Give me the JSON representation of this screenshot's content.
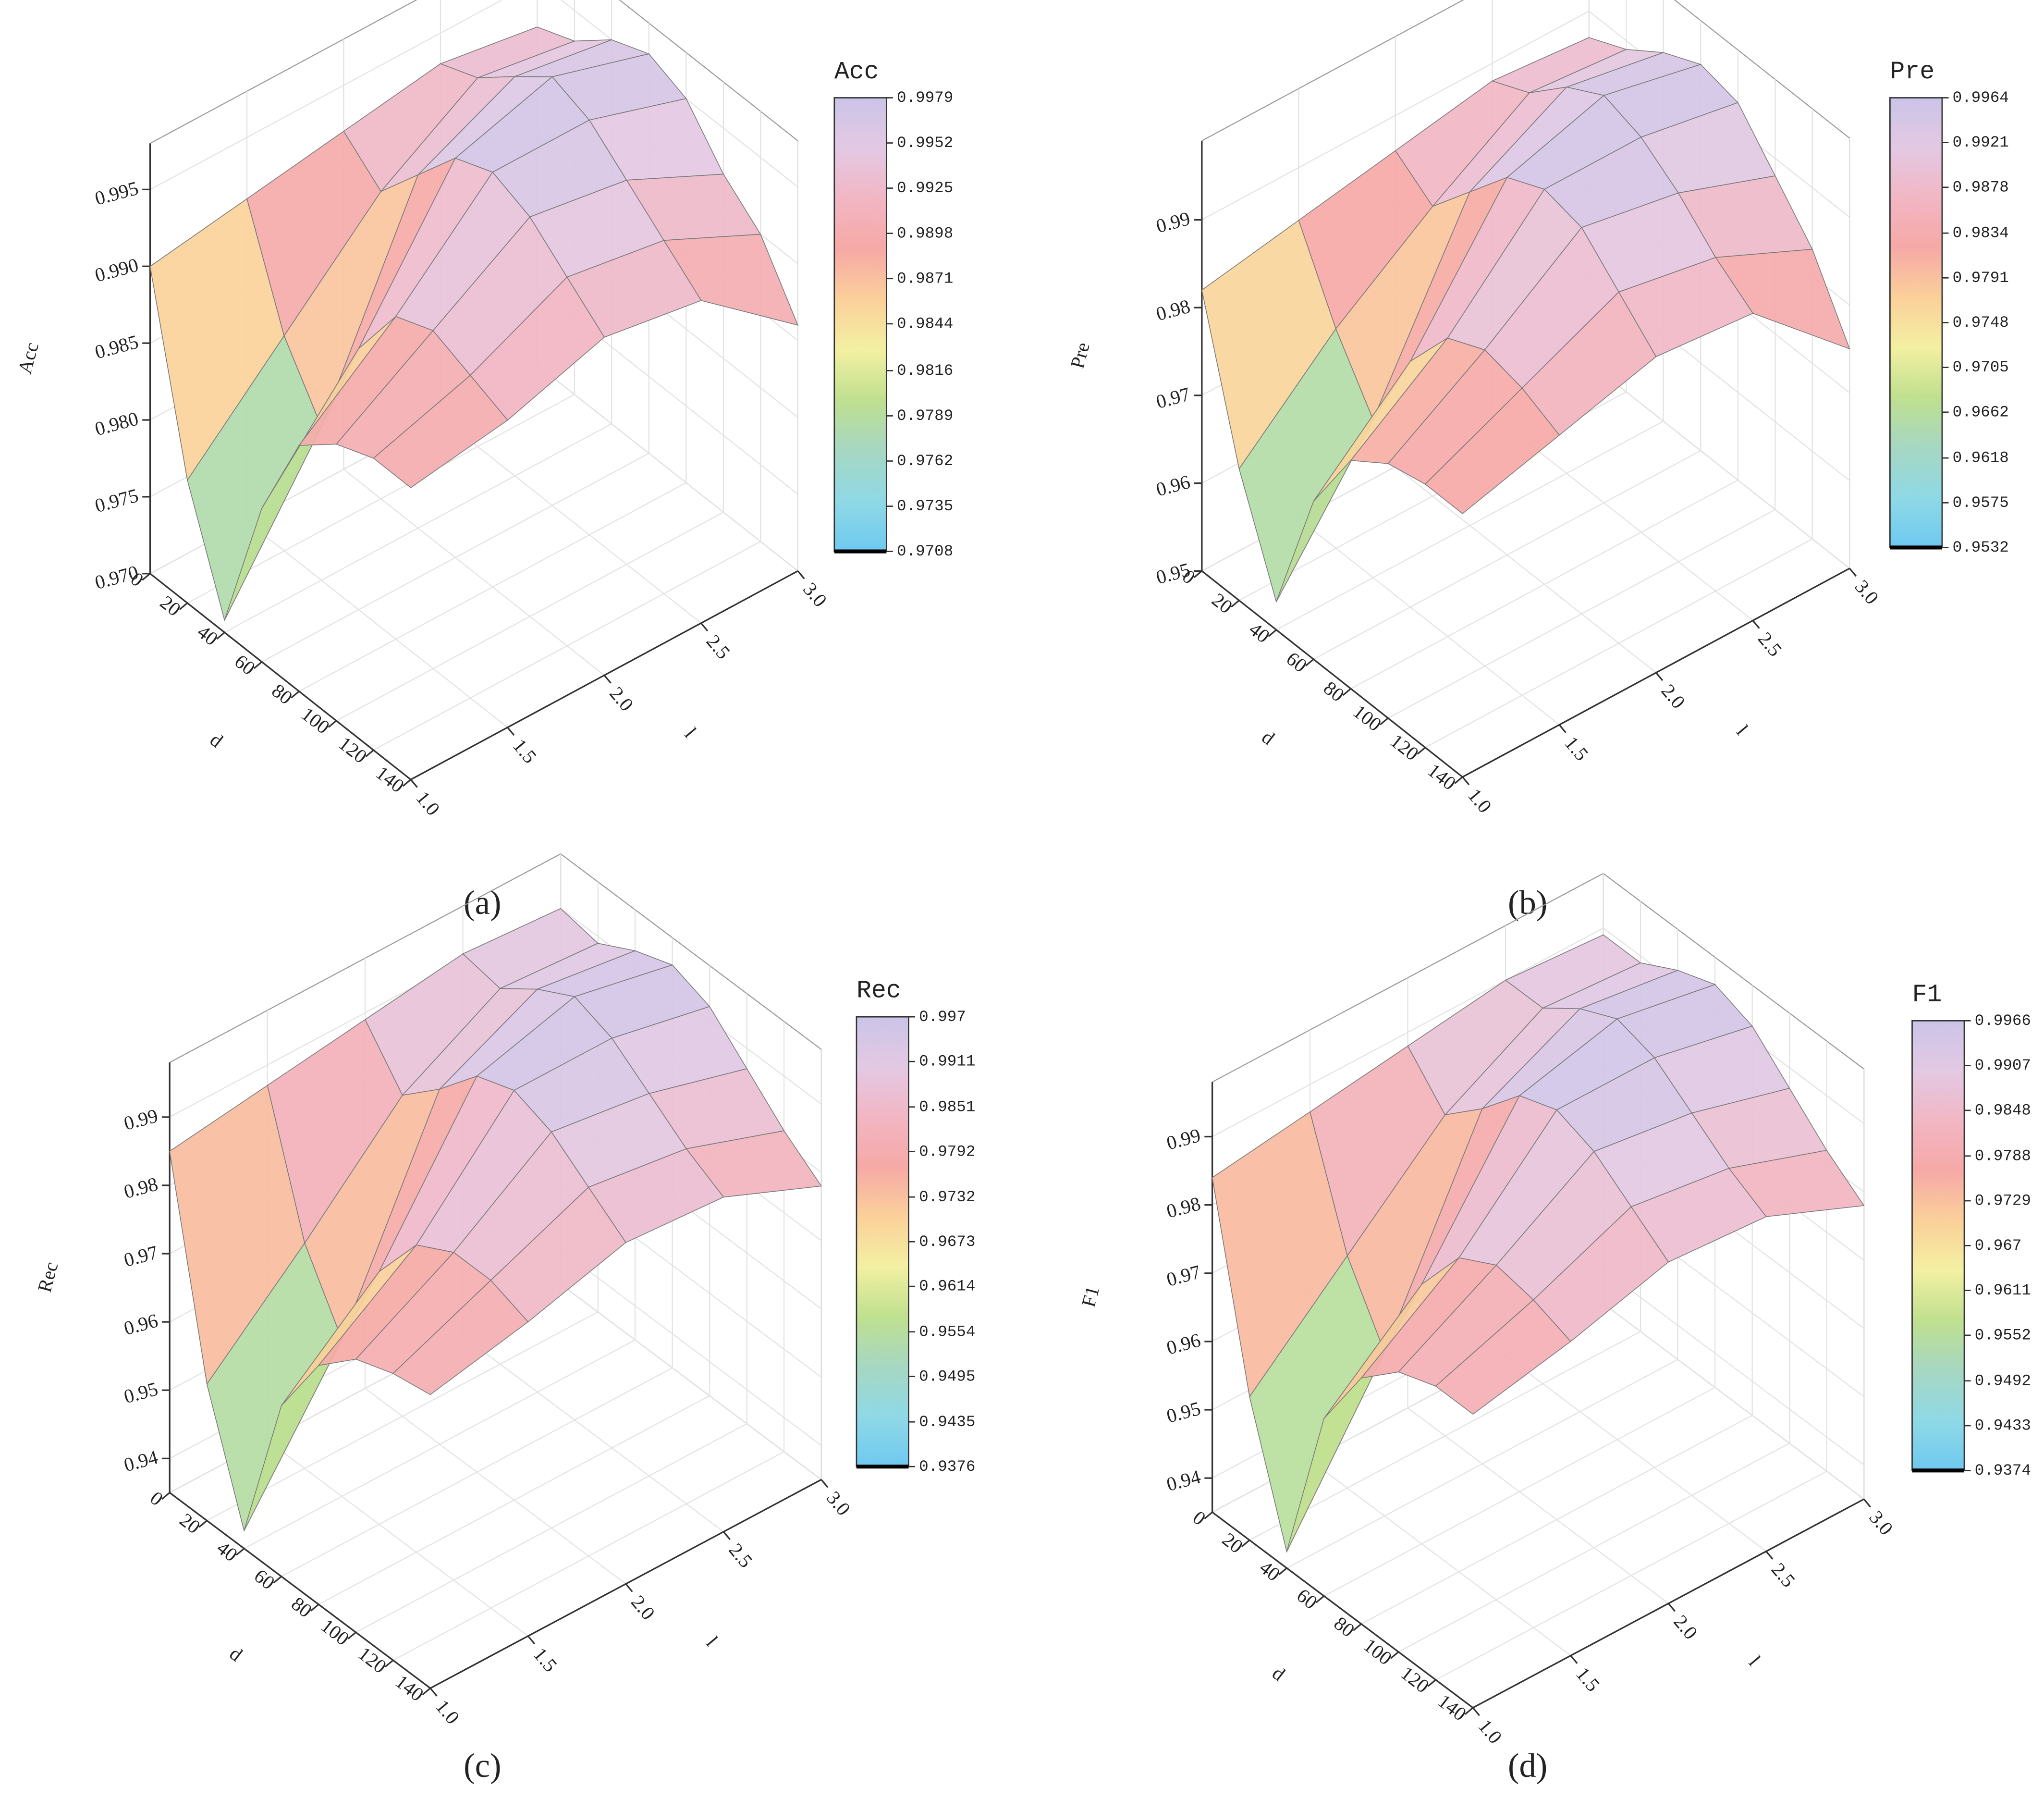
{
  "chart_data": [
    {
      "type": "surface",
      "caption": "(a)",
      "xlabel": "d",
      "ylabel": "l",
      "zlabel": "Acc",
      "x": [
        0,
        20,
        40,
        60,
        80,
        100,
        120,
        140
      ],
      "y": [
        {
          "value": 1.0,
          "label": "1.0"
        },
        1.5,
        {
          "value": 2.0,
          "label": "2.0"
        },
        2.5,
        {
          "value": 3.0,
          "label": "3.0"
        }
      ],
      "z": [
        [
          0.99,
          0.978,
          0.9708,
          0.98,
          0.986,
          0.988,
          0.989,
          0.989
        ],
        [
          0.991,
          0.984,
          0.98,
          0.987,
          0.991,
          0.992,
          0.991,
          0.99
        ],
        [
          0.992,
          0.99,
          0.993,
          0.996,
          0.997,
          0.996,
          0.994,
          0.992
        ],
        [
          0.993,
          0.994,
          0.996,
          0.9979,
          0.997,
          0.995,
          0.993,
          0.991
        ],
        [
          0.992,
          0.993,
          0.995,
          0.996,
          0.995,
          0.992,
          0.99,
          0.986
        ]
      ],
      "xlim": [
        0,
        140
      ],
      "xticks": [
        0,
        20,
        40,
        60,
        80,
        100,
        120,
        140
      ],
      "ylim": [
        1.0,
        3.0
      ],
      "yticks": [
        {
          "value": 1.0,
          "label": "1.0"
        },
        1.5,
        {
          "value": 2.0,
          "label": "2.0"
        },
        2.5,
        {
          "value": 3.0,
          "label": "3.0"
        }
      ],
      "zlim": [
        0.97,
        0.998
      ],
      "zticks": [
        {
          "value": 0.97,
          "label": "0.970"
        },
        0.975,
        {
          "value": 0.98,
          "label": "0.980"
        },
        0.985,
        {
          "value": 0.99,
          "label": "0.990"
        },
        0.995
      ],
      "colorbar": {
        "title": "Acc",
        "ticks": [
          0.9708,
          0.9735,
          0.9762,
          0.9789,
          0.9816,
          0.9844,
          0.9871,
          0.9898,
          0.9925,
          0.9952,
          0.9979
        ]
      },
      "colormap": [
        "#6ec9f0",
        "#8fd9e6",
        "#a6d7c2",
        "#bfe08f",
        "#f3f0a2",
        "#fbd09a",
        "#f6a9a6",
        "#f2b6c4",
        "#e3c9e3",
        "#cbc4e8"
      ]
    },
    {
      "type": "surface",
      "caption": "(b)",
      "xlabel": "d",
      "ylabel": "l",
      "zlabel": "Pre",
      "x": [
        0,
        20,
        40,
        60,
        80,
        100,
        120,
        140
      ],
      "y": [
        {
          "value": 1.0,
          "label": "1.0"
        },
        1.5,
        {
          "value": 2.0,
          "label": "2.0"
        },
        2.5,
        {
          "value": 3.0,
          "label": "3.0"
        }
      ],
      "z": [
        [
          0.982,
          0.965,
          0.9532,
          0.968,
          0.976,
          0.979,
          0.98,
          0.98
        ],
        [
          0.984,
          0.975,
          0.968,
          0.978,
          0.984,
          0.986,
          0.985,
          0.983
        ],
        [
          0.986,
          0.983,
          0.988,
          0.993,
          0.995,
          0.994,
          0.99,
          0.986
        ],
        [
          0.988,
          0.99,
          0.994,
          0.9964,
          0.995,
          0.992,
          0.988,
          0.985
        ],
        [
          0.987,
          0.989,
          0.992,
          0.994,
          0.993,
          0.988,
          0.983,
          0.975
        ]
      ],
      "xlim": [
        0,
        140
      ],
      "xticks": [
        0,
        20,
        40,
        60,
        80,
        100,
        120,
        140
      ],
      "ylim": [
        1.0,
        3.0
      ],
      "yticks": [
        {
          "value": 1.0,
          "label": "1.0"
        },
        1.5,
        {
          "value": 2.0,
          "label": "2.0"
        },
        2.5,
        {
          "value": 3.0,
          "label": "3.0"
        }
      ],
      "zlim": [
        0.95,
        0.999
      ],
      "zticks": [
        0.95,
        0.96,
        0.97,
        0.98,
        0.99
      ],
      "colorbar": {
        "title": "Pre",
        "ticks": [
          0.9532,
          0.9575,
          0.9618,
          0.9662,
          0.9705,
          0.9748,
          0.9791,
          0.9834,
          0.9878,
          0.9921,
          0.9964
        ]
      },
      "colormap": [
        "#6ec9f0",
        "#8fd9e6",
        "#a6d7c2",
        "#bfe08f",
        "#f3f0a2",
        "#fbd09a",
        "#f6a9a6",
        "#f2b6c4",
        "#e3c9e3",
        "#cbc4e8"
      ]
    },
    {
      "type": "surface",
      "caption": "(c)",
      "xlabel": "d",
      "ylabel": "l",
      "zlabel": "Rec",
      "x": [
        0,
        20,
        40,
        60,
        80,
        100,
        120,
        140
      ],
      "y": [
        {
          "value": 1.0,
          "label": "1.0"
        },
        1.5,
        {
          "value": 2.0,
          "label": "2.0"
        },
        2.5,
        {
          "value": 3.0,
          "label": "3.0"
        }
      ],
      "z": [
        [
          0.985,
          0.955,
          0.9376,
          0.96,
          0.97,
          0.975,
          0.977,
          0.978
        ],
        [
          0.987,
          0.968,
          0.958,
          0.972,
          0.98,
          0.983,
          0.983,
          0.981
        ],
        [
          0.989,
          0.982,
          0.987,
          0.993,
          0.995,
          0.993,
          0.989,
          0.985
        ],
        [
          0.991,
          0.99,
          0.994,
          0.997,
          0.995,
          0.991,
          0.987,
          0.984
        ],
        [
          0.99,
          0.989,
          0.992,
          0.994,
          0.992,
          0.987,
          0.982,
          0.978
        ]
      ],
      "xlim": [
        0,
        140
      ],
      "xticks": [
        0,
        20,
        40,
        60,
        80,
        100,
        120,
        140
      ],
      "ylim": [
        1.0,
        3.0
      ],
      "yticks": [
        {
          "value": 1.0,
          "label": "1.0"
        },
        1.5,
        {
          "value": 2.0,
          "label": "2.0"
        },
        2.5,
        {
          "value": 3.0,
          "label": "3.0"
        }
      ],
      "zlim": [
        0.935,
        0.998
      ],
      "zticks": [
        0.94,
        0.95,
        0.96,
        0.97,
        0.98,
        0.99
      ],
      "colorbar": {
        "title": "Rec",
        "ticks": [
          0.9376,
          0.9435,
          0.9495,
          0.9554,
          0.9614,
          0.9673,
          0.9732,
          0.9792,
          0.9851,
          0.9911,
          0.997
        ]
      },
      "colormap": [
        "#6ec9f0",
        "#8fd9e6",
        "#a6d7c2",
        "#bfe08f",
        "#f3f0a2",
        "#fbd09a",
        "#f6a9a6",
        "#f2b6c4",
        "#e3c9e3",
        "#cbc4e8"
      ]
    },
    {
      "type": "surface",
      "caption": "(d)",
      "xlabel": "d",
      "ylabel": "l",
      "zlabel": "F1",
      "x": [
        0,
        20,
        40,
        60,
        80,
        100,
        120,
        140
      ],
      "y": [
        {
          "value": 1.0,
          "label": "1.0"
        },
        1.5,
        {
          "value": 2.0,
          "label": "2.0"
        },
        2.5,
        {
          "value": 3.0,
          "label": "3.0"
        }
      ],
      "z": [
        [
          0.984,
          0.956,
          0.9374,
          0.961,
          0.971,
          0.976,
          0.978,
          0.978
        ],
        [
          0.986,
          0.969,
          0.959,
          0.973,
          0.981,
          0.984,
          0.983,
          0.981
        ],
        [
          0.988,
          0.982,
          0.987,
          0.993,
          0.995,
          0.993,
          0.989,
          0.985
        ],
        [
          0.99,
          0.99,
          0.994,
          0.9966,
          0.995,
          0.991,
          0.987,
          0.984
        ],
        [
          0.989,
          0.989,
          0.992,
          0.994,
          0.992,
          0.987,
          0.982,
          0.978
        ]
      ],
      "xlim": [
        0,
        140
      ],
      "xticks": [
        0,
        20,
        40,
        60,
        80,
        100,
        120,
        140
      ],
      "ylim": [
        1.0,
        3.0
      ],
      "yticks": [
        {
          "value": 1.0,
          "label": "1.0"
        },
        1.5,
        {
          "value": 2.0,
          "label": "2.0"
        },
        2.5,
        {
          "value": 3.0,
          "label": "3.0"
        }
      ],
      "zlim": [
        0.935,
        0.998
      ],
      "zticks": [
        0.94,
        0.95,
        0.96,
        0.97,
        0.98,
        0.99
      ],
      "colorbar": {
        "title": "F1",
        "ticks": [
          0.9374,
          0.9433,
          0.9492,
          0.9552,
          0.9611,
          0.967,
          0.9729,
          0.9788,
          0.9848,
          0.9907,
          0.9966
        ]
      },
      "colormap": [
        "#6ec9f0",
        "#8fd9e6",
        "#a6d7c2",
        "#bfe08f",
        "#f3f0a2",
        "#fbd09a",
        "#f6a9a6",
        "#f2b6c4",
        "#e3c9e3",
        "#cbc4e8"
      ]
    }
  ]
}
